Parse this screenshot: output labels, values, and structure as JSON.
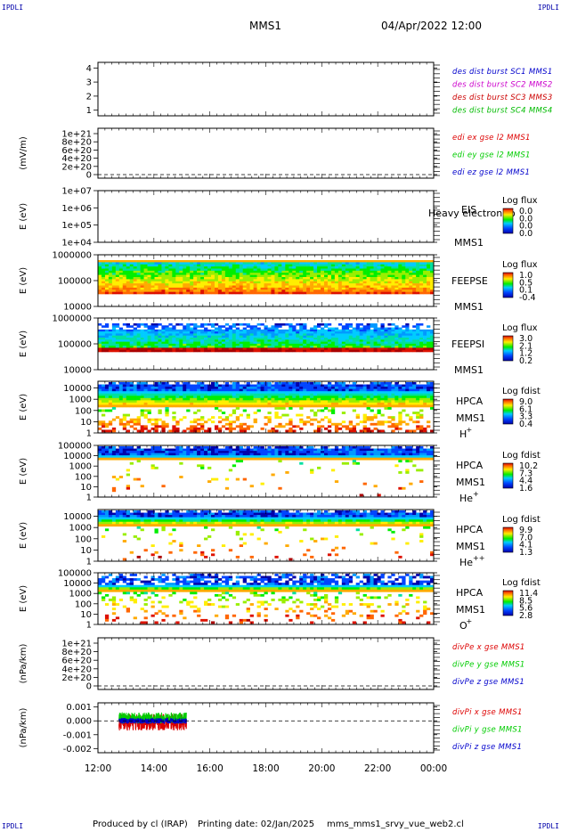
{
  "header": {
    "corner_tl": "IPDLI",
    "corner_tr": "IPDLI",
    "corner_bl": "IPDLI",
    "corner_br": "IPDLI",
    "spacecraft": "MMS1",
    "datetime": "04/Apr/2022 12:00"
  },
  "footer": {
    "produced_by": "Produced by cl (IRAP)",
    "printing_date": "Printing date: 02/Jan/2025",
    "filename": "mms_mms1_srvy_vue_web2.cl"
  },
  "colors": {
    "mms1": "#0000cc",
    "mms2": "#cc00cc",
    "mms3": "#cc0000",
    "mms4": "#00bb00",
    "x": "#dd0000",
    "y": "#00cc00",
    "z": "#0000cc"
  },
  "chart_data": [
    {
      "id": "burst",
      "type": "line",
      "ylabel": "",
      "yticks": [
        "4",
        "3",
        "2",
        "1"
      ],
      "ylim": [
        0.6,
        4.4
      ],
      "legend": [
        {
          "label": "des dist burst SC1 MMS1",
          "color": "#0000cc"
        },
        {
          "label": "des dist burst SC2 MMS2",
          "color": "#cc00cc"
        },
        {
          "label": "des dist burst SC3 MMS3",
          "color": "#cc0000"
        },
        {
          "label": "des dist burst SC4 MMS4",
          "color": "#00bb00"
        }
      ],
      "series": []
    },
    {
      "id": "edi",
      "type": "line",
      "ylabel": "(mV/m)",
      "yticks": [
        "1e+21",
        "8e+20",
        "6e+20",
        "4e+20",
        "2e+20",
        "0"
      ],
      "ylim": [
        0,
        1e+21
      ],
      "zero_line": true,
      "legend": [
        {
          "label": "edi ex gse l2 MMS1",
          "color": "#dd0000"
        },
        {
          "label": "edi ey gse l2 MMS1",
          "color": "#00cc00"
        },
        {
          "label": "edi ez gse l2 MMS1",
          "color": "#0000cc"
        }
      ],
      "series": []
    },
    {
      "id": "eis",
      "type": "heatmap",
      "ylabel": "E (eV)",
      "yticks": [
        "1e+07",
        "1e+06",
        "1e+05",
        "1e+04"
      ],
      "ylim": [
        10000,
        10000000
      ],
      "scale": "log",
      "instrument": "EIS",
      "instrument_sub": "Heavy electron to",
      "sc": "MMS1",
      "colorbar_title": "Log flux",
      "colorbar_ticks": [
        "0.0",
        "0.0",
        "0.0",
        "0.0"
      ],
      "data_present": false
    },
    {
      "id": "feepse",
      "type": "heatmap",
      "ylabel": "E (eV)",
      "yticks": [
        "1000000",
        "100000",
        "10000"
      ],
      "ylim": [
        10000,
        1000000
      ],
      "scale": "log",
      "instrument": "FEEPSE",
      "sc": "MMS1",
      "colorbar_title": "Log flux",
      "colorbar_ticks": [
        "1.0",
        "0.5",
        "0.1",
        "-0.4"
      ],
      "data_present": true,
      "data_xrange": [
        "12:00",
        "24:00"
      ]
    },
    {
      "id": "feepsi",
      "type": "heatmap",
      "ylabel": "E (eV)",
      "yticks": [
        "1000000",
        "100000",
        "10000"
      ],
      "ylim": [
        10000,
        1000000
      ],
      "scale": "log",
      "instrument": "FEEPSI",
      "sc": "MMS1",
      "colorbar_title": "Log flux",
      "colorbar_ticks": [
        "3.0",
        "2.1",
        "1.2",
        "0.2"
      ],
      "data_present": true,
      "data_xrange": [
        "12:00",
        "24:00"
      ]
    },
    {
      "id": "hpca_h",
      "type": "heatmap",
      "ylabel": "E (eV)",
      "yticks": [
        "10000",
        "1000",
        "100",
        "10",
        "1"
      ],
      "ylim": [
        1,
        40000
      ],
      "scale": "log",
      "instrument": "HPCA",
      "sc": "MMS1",
      "species": "H",
      "species_sup": "+",
      "colorbar_title": "Log fdist",
      "colorbar_ticks": [
        "9.0",
        "6.1",
        "3.3",
        "0.4"
      ],
      "data_present": true
    },
    {
      "id": "hpca_he",
      "type": "heatmap",
      "ylabel": "E (eV)",
      "yticks": [
        "100000",
        "10000",
        "1000",
        "100",
        "10",
        "1"
      ],
      "ylim": [
        1,
        100000
      ],
      "scale": "log",
      "instrument": "HPCA",
      "sc": "MMS1",
      "species": "He",
      "species_sup": "+",
      "colorbar_title": "Log fdist",
      "colorbar_ticks": [
        "10.2",
        "7.3",
        "4.4",
        "1.6"
      ],
      "data_present": true
    },
    {
      "id": "hpca_he2",
      "type": "heatmap",
      "ylabel": "E (eV)",
      "yticks": [
        "10000",
        "1000",
        "100",
        "10",
        "1"
      ],
      "ylim": [
        1,
        40000
      ],
      "scale": "log",
      "instrument": "HPCA",
      "sc": "MMS1",
      "species": "He",
      "species_sup": "++",
      "colorbar_title": "Log fdist",
      "colorbar_ticks": [
        "9.9",
        "7.0",
        "4.1",
        "1.3"
      ],
      "data_present": true
    },
    {
      "id": "hpca_o",
      "type": "heatmap",
      "ylabel": "E (eV)",
      "yticks": [
        "100000",
        "10000",
        "1000",
        "100",
        "10",
        "1"
      ],
      "ylim": [
        1,
        100000
      ],
      "scale": "log",
      "instrument": "HPCA",
      "sc": "MMS1",
      "species": "O",
      "species_sup": "+",
      "colorbar_title": "Log fdist",
      "colorbar_ticks": [
        "11.4",
        "8.5",
        "5.6",
        "2.8"
      ],
      "data_present": true
    },
    {
      "id": "divpe",
      "type": "line",
      "ylabel": "(nPa/km)",
      "yticks": [
        "1e+21",
        "8e+20",
        "6e+20",
        "4e+20",
        "2e+20",
        "0"
      ],
      "ylim": [
        0,
        1e+21
      ],
      "zero_line": true,
      "legend": [
        {
          "label": "divPe x gse MMS1",
          "color": "#dd0000"
        },
        {
          "label": "divPe y gse MMS1",
          "color": "#00cc00"
        },
        {
          "label": "divPe z gse MMS1",
          "color": "#0000cc"
        }
      ],
      "series": []
    },
    {
      "id": "divpi",
      "type": "line",
      "ylabel": "(nPa/km)",
      "yticks": [
        "0.001",
        "0.000",
        "-0.001",
        "-0.002"
      ],
      "ylim": [
        -0.0023,
        0.0013
      ],
      "zero_line": true,
      "legend": [
        {
          "label": "divPi x gse MMS1",
          "color": "#dd0000"
        },
        {
          "label": "divPi y gse MMS1",
          "color": "#00cc00"
        },
        {
          "label": "divPi z gse MMS1",
          "color": "#0000cc"
        }
      ],
      "data_xrange": [
        "12:45",
        "15:10"
      ],
      "series": [
        {
          "name": "divPi x gse MMS1",
          "color": "#dd0000",
          "mean": -0.0001,
          "amplitude": 0.0006
        },
        {
          "name": "divPi y gse MMS1",
          "color": "#00cc00",
          "mean": 0.0002,
          "amplitude": 0.0004
        },
        {
          "name": "divPi z gse MMS1",
          "color": "#0000cc",
          "mean": 0.0,
          "amplitude": 0.0002
        }
      ]
    }
  ],
  "xaxis": {
    "ticks": [
      "12:00",
      "14:00",
      "16:00",
      "18:00",
      "20:00",
      "22:00",
      "00:00"
    ],
    "range_hours": [
      12,
      24
    ]
  }
}
